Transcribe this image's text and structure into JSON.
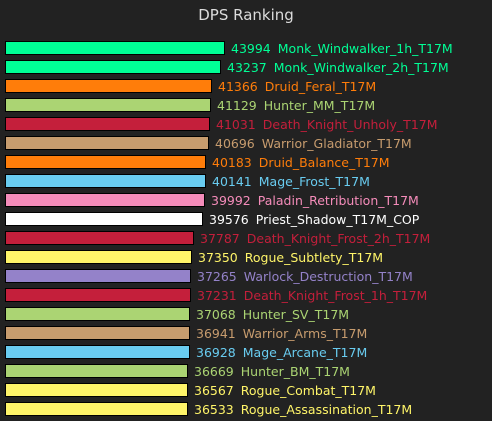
{
  "chart_data": {
    "type": "bar",
    "orientation": "horizontal",
    "title": "DPS Ranking",
    "grid": false,
    "legend": "none",
    "xlim": [
      0,
      43994
    ],
    "bars": [
      {
        "value": 43994,
        "label": "Monk_Windwalker_1h_T17M",
        "color": "#00ff96"
      },
      {
        "value": 43237,
        "label": "Monk_Windwalker_2h_T17M",
        "color": "#00ff96"
      },
      {
        "value": 41366,
        "label": "Druid_Feral_T17M",
        "color": "#ff7d0a"
      },
      {
        "value": 41129,
        "label": "Hunter_MM_T17M",
        "color": "#abd473"
      },
      {
        "value": 41031,
        "label": "Death_Knight_Unholy_T17M",
        "color": "#c41f3b"
      },
      {
        "value": 40696,
        "label": "Warrior_Gladiator_T17M",
        "color": "#c79c6e"
      },
      {
        "value": 40183,
        "label": "Druid_Balance_T17M",
        "color": "#ff7d0a"
      },
      {
        "value": 40141,
        "label": "Mage_Frost_T17M",
        "color": "#69ccf0"
      },
      {
        "value": 39992,
        "label": "Paladin_Retribution_T17M",
        "color": "#f58cba"
      },
      {
        "value": 39576,
        "label": "Priest_Shadow_T17M_COP",
        "color": "#ffffff"
      },
      {
        "value": 37787,
        "label": "Death_Knight_Frost_2h_T17M",
        "color": "#c41f3b"
      },
      {
        "value": 37350,
        "label": "Rogue_Subtlety_T17M",
        "color": "#fff569"
      },
      {
        "value": 37265,
        "label": "Warlock_Destruction_T17M",
        "color": "#9482c9"
      },
      {
        "value": 37231,
        "label": "Death_Knight_Frost_1h_T17M",
        "color": "#c41f3b"
      },
      {
        "value": 37068,
        "label": "Hunter_SV_T17M",
        "color": "#abd473"
      },
      {
        "value": 36941,
        "label": "Warrior_Arms_T17M",
        "color": "#c79c6e"
      },
      {
        "value": 36928,
        "label": "Mage_Arcane_T17M",
        "color": "#69ccf0"
      },
      {
        "value": 36669,
        "label": "Hunter_BM_T17M",
        "color": "#abd473"
      },
      {
        "value": 36567,
        "label": "Rogue_Combat_T17M",
        "color": "#fff569"
      },
      {
        "value": 36533,
        "label": "Rogue_Assassination_T17M",
        "color": "#fff569"
      }
    ]
  }
}
